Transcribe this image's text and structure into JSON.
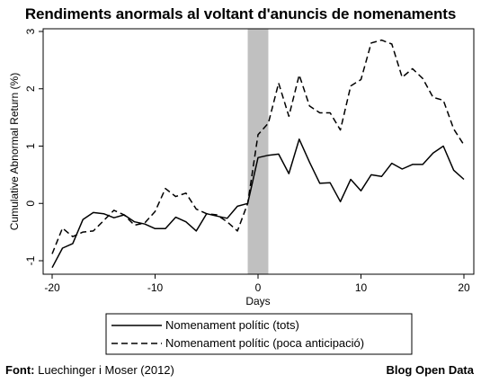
{
  "header": {
    "title": "Rendiments anormals al voltant d'anuncis de nomenaments"
  },
  "footer": {
    "source_label": "Font:",
    "source_text": "Luechinger i Moser (2012)",
    "brand": "Blog Open Data"
  },
  "colors": {
    "line": "#000000",
    "event_band": "#c0c0c0",
    "background": "#ffffff"
  },
  "chart_data": {
    "type": "line",
    "title": "Rendiments anormals al voltant d'anuncis de nomenaments",
    "xlabel": "Days",
    "ylabel": "Cumulative Abnormal Return (%)",
    "xlim": [
      -20,
      20
    ],
    "ylim": [
      -1,
      3
    ],
    "xticks": [
      -20,
      -10,
      0,
      10,
      20
    ],
    "yticks": [
      -1,
      0,
      1,
      2,
      3
    ],
    "grid": false,
    "legend_position": "bottom",
    "shaded_band": [
      -1,
      1
    ],
    "x": [
      -20,
      -19,
      -18,
      -17,
      -16,
      -15,
      -14,
      -13,
      -12,
      -11,
      -10,
      -9,
      -8,
      -7,
      -6,
      -5,
      -4,
      -3,
      -2,
      -1,
      0,
      1,
      2,
      3,
      4,
      5,
      6,
      7,
      8,
      9,
      10,
      11,
      12,
      13,
      14,
      15,
      16,
      17,
      18,
      19,
      20
    ],
    "series": [
      {
        "name": "Nomenament polític (tots)",
        "style": "solid",
        "values": [
          -1.12,
          -0.78,
          -0.7,
          -0.28,
          -0.16,
          -0.18,
          -0.25,
          -0.2,
          -0.32,
          -0.36,
          -0.44,
          -0.44,
          -0.24,
          -0.32,
          -0.48,
          -0.18,
          -0.22,
          -0.26,
          -0.05,
          0.0,
          0.8,
          0.84,
          0.86,
          0.52,
          1.12,
          0.72,
          0.35,
          0.36,
          0.03,
          0.42,
          0.22,
          0.5,
          0.47,
          0.7,
          0.6,
          0.68,
          0.68,
          0.88,
          1.0,
          0.58,
          0.42
        ]
      },
      {
        "name": "Nomenament polític (poca anticipació)",
        "style": "dashed",
        "values": [
          -0.88,
          -0.43,
          -0.58,
          -0.5,
          -0.48,
          -0.3,
          -0.12,
          -0.2,
          -0.38,
          -0.34,
          -0.14,
          0.26,
          0.12,
          0.18,
          -0.1,
          -0.18,
          -0.2,
          -0.32,
          -0.48,
          0.0,
          1.2,
          1.4,
          2.1,
          1.52,
          2.24,
          1.7,
          1.58,
          1.58,
          1.28,
          2.05,
          2.16,
          2.8,
          2.85,
          2.78,
          2.2,
          2.35,
          2.18,
          1.85,
          1.8,
          1.3,
          1.02
        ]
      }
    ]
  }
}
